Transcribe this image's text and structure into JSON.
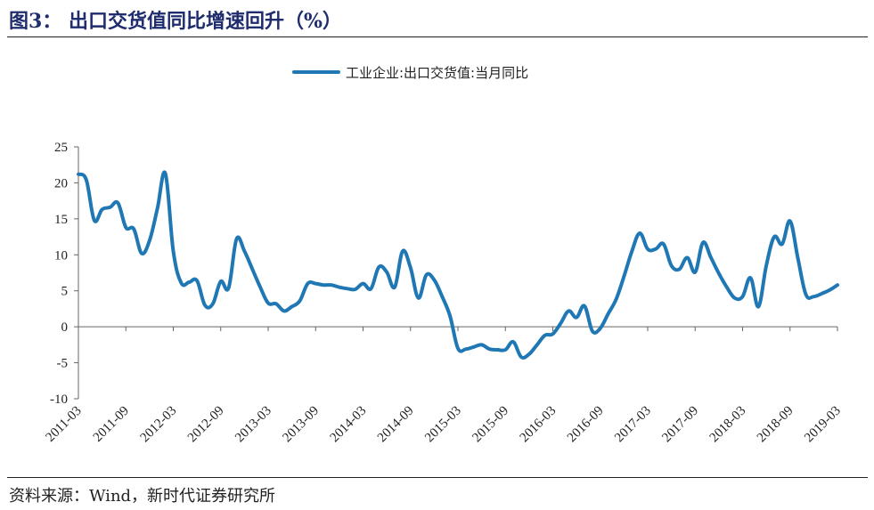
{
  "figure": {
    "title": "图3：  出口交货值同比增速回升（%）",
    "source": "资料来源：Wind，新时代证券研究所"
  },
  "colors": {
    "series": "#1f77b4",
    "axis": "#666666",
    "title": "#1f2d6e"
  },
  "chart_data": {
    "type": "line",
    "title": "",
    "xlabel": "",
    "ylabel": "",
    "ylim": [
      -10,
      25
    ],
    "yticks": [
      25,
      20,
      15,
      10,
      5,
      0,
      -5,
      -10
    ],
    "xticks": [
      "2011-03",
      "2011-09",
      "2012-03",
      "2012-09",
      "2013-03",
      "2013-09",
      "2014-03",
      "2014-09",
      "2015-03",
      "2015-09",
      "2016-03",
      "2016-09",
      "2017-03",
      "2017-09",
      "2018-03",
      "2018-09",
      "2019-03"
    ],
    "legend": {
      "position": "top-center",
      "entries": [
        "工业企业:出口交货值:当月同比"
      ]
    },
    "series": [
      {
        "name": "工业企业:出口交货值:当月同比",
        "x": [
          "2011-03",
          "2011-04",
          "2011-05",
          "2011-06",
          "2011-07",
          "2011-08",
          "2011-09",
          "2011-10",
          "2011-11",
          "2011-12",
          "2012-01",
          "2012-02",
          "2012-03",
          "2012-04",
          "2012-05",
          "2012-06",
          "2012-07",
          "2012-08",
          "2012-09",
          "2012-10",
          "2012-11",
          "2012-12",
          "2013-01",
          "2013-02",
          "2013-03",
          "2013-04",
          "2013-05",
          "2013-06",
          "2013-07",
          "2013-08",
          "2013-09",
          "2013-10",
          "2013-11",
          "2013-12",
          "2014-01",
          "2014-02",
          "2014-03",
          "2014-04",
          "2014-05",
          "2014-06",
          "2014-07",
          "2014-08",
          "2014-09",
          "2014-10",
          "2014-11",
          "2014-12",
          "2015-01",
          "2015-02",
          "2015-03",
          "2015-04",
          "2015-05",
          "2015-06",
          "2015-07",
          "2015-08",
          "2015-09",
          "2015-10",
          "2015-11",
          "2015-12",
          "2016-01",
          "2016-02",
          "2016-03",
          "2016-04",
          "2016-05",
          "2016-06",
          "2016-07",
          "2016-08",
          "2016-09",
          "2016-10",
          "2016-11",
          "2016-12",
          "2017-01",
          "2017-02",
          "2017-03",
          "2017-04",
          "2017-05",
          "2017-06",
          "2017-07",
          "2017-08",
          "2017-09",
          "2017-10",
          "2017-11",
          "2017-12",
          "2018-01",
          "2018-02",
          "2018-03",
          "2018-04",
          "2018-05",
          "2018-06",
          "2018-07",
          "2018-08",
          "2018-09",
          "2018-10",
          "2018-11",
          "2018-12",
          "2019-01",
          "2019-02",
          "2019-03"
        ],
        "values": [
          21.2,
          20.4,
          14.8,
          16.3,
          16.6,
          17.2,
          13.8,
          13.6,
          10.2,
          12.0,
          16.5,
          21.3,
          10.5,
          6.1,
          6.2,
          6.4,
          3.0,
          3.2,
          6.3,
          5.4,
          12.2,
          10.5,
          8.0,
          5.5,
          3.3,
          3.2,
          2.2,
          2.8,
          3.6,
          6.0,
          6.0,
          5.8,
          5.8,
          5.5,
          5.3,
          5.2,
          6.0,
          5.3,
          8.3,
          7.6,
          5.5,
          10.5,
          8.2,
          4.0,
          7.2,
          6.5,
          4.2,
          1.5,
          -3.0,
          -3.1,
          -2.8,
          -2.5,
          -3.1,
          -3.2,
          -3.2,
          -2.1,
          -4.2,
          -3.8,
          -2.5,
          -1.2,
          -1.0,
          0.5,
          2.2,
          1.3,
          2.9,
          -0.6,
          -0.2,
          1.8,
          3.8,
          7.0,
          10.5,
          13.0,
          10.8,
          10.8,
          11.5,
          8.5,
          8.0,
          9.6,
          7.6,
          11.7,
          9.6,
          7.4,
          5.5,
          4.0,
          4.2,
          6.8,
          2.8,
          8.5,
          12.5,
          11.5,
          14.7,
          9.5,
          4.5,
          4.2,
          4.6,
          5.1,
          5.8
        ]
      }
    ]
  }
}
